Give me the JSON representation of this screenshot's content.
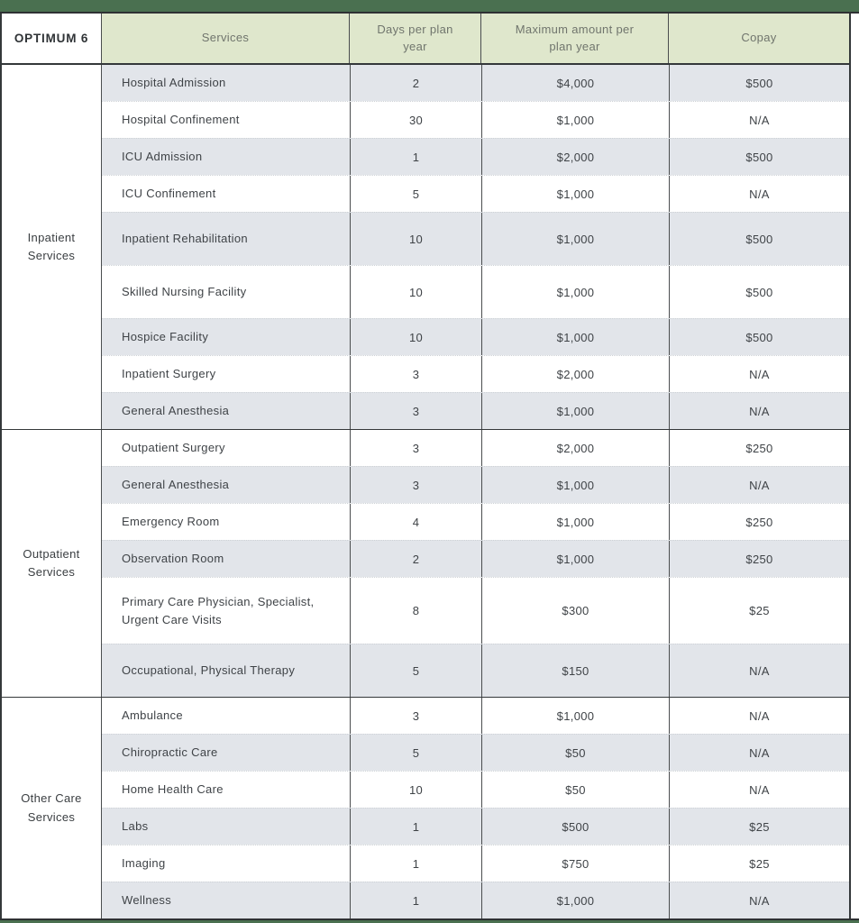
{
  "plan": {
    "name": "OPTIMUM 6"
  },
  "colors": {
    "dark_green_bar": "#4a7050",
    "header_green": "#dfe7cc",
    "row_shade_gray": "#e2e5ea",
    "border_dark": "#34383a",
    "text_dark": "#3f4347",
    "header_text": "#70756d"
  },
  "table": {
    "headers": {
      "services": "Services",
      "days": "Days per plan year",
      "max": "Maximum amount per plan year",
      "copay": "Copay"
    },
    "sections": [
      {
        "label": "Inpatient Services",
        "rows": [
          {
            "service": "Hospital Admission",
            "days": "2",
            "max": "$4,000",
            "copay": "$500"
          },
          {
            "service": "Hospital Confinement",
            "days": "30",
            "max": "$1,000",
            "copay": "N/A"
          },
          {
            "service": "ICU Admission",
            "days": "1",
            "max": "$2,000",
            "copay": "$500"
          },
          {
            "service": "ICU Confinement",
            "days": "5",
            "max": "$1,000",
            "copay": "N/A"
          },
          {
            "service": "Inpatient Rehabilitation",
            "days": "10",
            "max": "$1,000",
            "copay": "$500"
          },
          {
            "service": "Skilled Nursing Facility",
            "days": "10",
            "max": "$1,000",
            "copay": "$500"
          },
          {
            "service": "Hospice Facility",
            "days": "10",
            "max": "$1,000",
            "copay": "$500"
          },
          {
            "service": "Inpatient Surgery",
            "days": "3",
            "max": "$2,000",
            "copay": "N/A"
          },
          {
            "service": "General Anesthesia",
            "days": "3",
            "max": "$1,000",
            "copay": "N/A"
          }
        ]
      },
      {
        "label": "Outpatient Services",
        "rows": [
          {
            "service": "Outpatient Surgery",
            "days": "3",
            "max": "$2,000",
            "copay": "$250"
          },
          {
            "service": "General Anesthesia",
            "days": "3",
            "max": "$1,000",
            "copay": "N/A"
          },
          {
            "service": "Emergency Room",
            "days": "4",
            "max": "$1,000",
            "copay": "$250"
          },
          {
            "service": "Observation Room",
            "days": "2",
            "max": "$1,000",
            "copay": "$250"
          },
          {
            "service": "Primary Care Physician, Specialist, Urgent Care Visits",
            "days": "8",
            "max": "$300",
            "copay": "$25"
          },
          {
            "service": "Occupational, Physical Therapy",
            "days": "5",
            "max": "$150",
            "copay": "N/A"
          }
        ]
      },
      {
        "label": "Other Care Services",
        "rows": [
          {
            "service": "Ambulance",
            "days": "3",
            "max": "$1,000",
            "copay": "N/A"
          },
          {
            "service": "Chiropractic Care",
            "days": "5",
            "max": "$50",
            "copay": "N/A"
          },
          {
            "service": "Home Health Care",
            "days": "10",
            "max": "$50",
            "copay": "N/A"
          },
          {
            "service": "Labs",
            "days": "1",
            "max": "$500",
            "copay": "$25"
          },
          {
            "service": "Imaging",
            "days": "1",
            "max": "$750",
            "copay": "$25"
          },
          {
            "service": "Wellness",
            "days": "1",
            "max": "$1,000",
            "copay": "N/A"
          }
        ]
      }
    ]
  }
}
